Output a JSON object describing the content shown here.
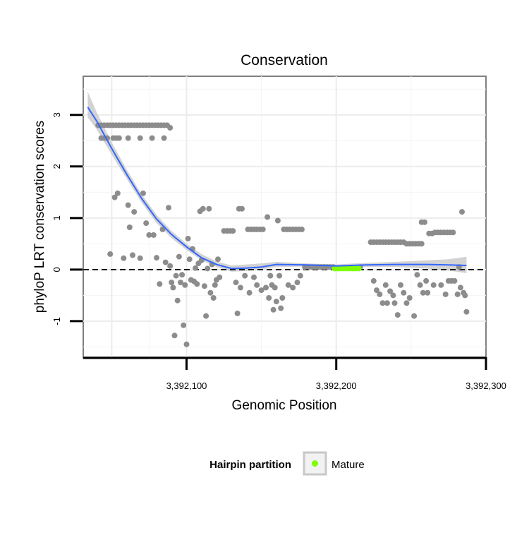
{
  "chart_data": {
    "type": "scatter",
    "title": "Conservation",
    "xlabel": "Genomic Position",
    "ylabel": "phyloP LRT conservation scores",
    "xlim": [
      3392031,
      3392300
    ],
    "ylim": [
      -1.7,
      3.75
    ],
    "x_ticks": [
      3392100,
      3392200,
      3392300
    ],
    "x_tick_labels": [
      "3,392,100",
      "3,392,200",
      "3,392,300"
    ],
    "y_ticks": [
      -1,
      0,
      1,
      2,
      3
    ],
    "y_tick_labels": [
      "-1",
      "0",
      "1",
      "2",
      "3"
    ],
    "reference_line": {
      "y": 0,
      "style": "dashed"
    },
    "grid": true,
    "legend": {
      "title": "Hairpin partition",
      "position": "bottom",
      "items": [
        {
          "label": "Mature",
          "color": "#7fff00"
        }
      ]
    },
    "colors": {
      "points": "#8c8c8c",
      "mature": "#7fff00",
      "smooth_line": "#3366ff",
      "ribbon": "#c8c8c8"
    },
    "series": [
      {
        "type": "scatter",
        "points": [
          [
            3392041,
            2.8
          ],
          [
            3392043,
            2.8
          ],
          [
            3392045,
            2.8
          ],
          [
            3392047,
            2.8
          ],
          [
            3392049,
            2.8
          ],
          [
            3392051,
            2.8
          ],
          [
            3392053,
            2.8
          ],
          [
            3392055,
            2.8
          ],
          [
            3392057,
            2.8
          ],
          [
            3392059,
            2.8
          ],
          [
            3392061,
            2.8
          ],
          [
            3392063,
            2.8
          ],
          [
            3392065,
            2.8
          ],
          [
            3392067,
            2.8
          ],
          [
            3392069,
            2.8
          ],
          [
            3392071,
            2.8
          ],
          [
            3392073,
            2.8
          ],
          [
            3392075,
            2.8
          ],
          [
            3392077,
            2.8
          ],
          [
            3392079,
            2.8
          ],
          [
            3392081,
            2.8
          ],
          [
            3392083,
            2.8
          ],
          [
            3392085,
            2.8
          ],
          [
            3392087,
            2.8
          ],
          [
            3392043,
            2.55
          ],
          [
            3392045,
            2.55
          ],
          [
            3392047,
            2.55
          ],
          [
            3392051,
            2.55
          ],
          [
            3392053,
            2.55
          ],
          [
            3392055,
            2.55
          ],
          [
            3392061,
            2.55
          ],
          [
            3392069,
            2.55
          ],
          [
            3392077,
            2.55
          ],
          [
            3392085,
            2.55
          ],
          [
            3392089,
            2.75
          ],
          [
            3392049,
            0.3
          ],
          [
            3392052,
            1.4
          ],
          [
            3392054,
            1.48
          ],
          [
            3392058,
            0.22
          ],
          [
            3392061,
            1.25
          ],
          [
            3392062,
            0.82
          ],
          [
            3392064,
            0.28
          ],
          [
            3392065,
            1.12
          ],
          [
            3392069,
            0.22
          ],
          [
            3392071,
            1.48
          ],
          [
            3392073,
            0.9
          ],
          [
            3392075,
            0.67
          ],
          [
            3392078,
            0.67
          ],
          [
            3392080,
            0.23
          ],
          [
            3392082,
            -0.28
          ],
          [
            3392084,
            0.78
          ],
          [
            3392086,
            0.14
          ],
          [
            3392088,
            1.2
          ],
          [
            3392089,
            0.07
          ],
          [
            3392090,
            -0.25
          ],
          [
            3392091,
            -0.35
          ],
          [
            3392092,
            -1.28
          ],
          [
            3392093,
            -0.12
          ],
          [
            3392094,
            -0.6
          ],
          [
            3392095,
            0.25
          ],
          [
            3392096,
            -0.25
          ],
          [
            3392097,
            -0.1
          ],
          [
            3392098,
            -1.08
          ],
          [
            3392099,
            -0.3
          ],
          [
            3392100,
            -1.45
          ],
          [
            3392101,
            0.6
          ],
          [
            3392102,
            0.2
          ],
          [
            3392103,
            -0.2
          ],
          [
            3392104,
            0.4
          ],
          [
            3392105,
            -0.23
          ],
          [
            3392106,
            0.03
          ],
          [
            3392107,
            -0.28
          ],
          [
            3392108,
            0.12
          ],
          [
            3392109,
            1.13
          ],
          [
            3392110,
            0.18
          ],
          [
            3392111,
            1.18
          ],
          [
            3392112,
            -0.32
          ],
          [
            3392113,
            -0.9
          ],
          [
            3392114,
            0.02
          ],
          [
            3392115,
            1.18
          ],
          [
            3392116,
            -0.45
          ],
          [
            3392117,
            0.1
          ],
          [
            3392118,
            -0.55
          ],
          [
            3392119,
            -0.3
          ],
          [
            3392120,
            -0.2
          ],
          [
            3392121,
            0.2
          ],
          [
            3392122,
            -0.15
          ],
          [
            3392125,
            0.75
          ],
          [
            3392127,
            0.75
          ],
          [
            3392129,
            0.75
          ],
          [
            3392131,
            0.75
          ],
          [
            3392133,
            -0.25
          ],
          [
            3392135,
            1.18
          ],
          [
            3392137,
            1.18
          ],
          [
            3392134,
            -0.85
          ],
          [
            3392136,
            -0.35
          ],
          [
            3392139,
            -0.12
          ],
          [
            3392141,
            0.78
          ],
          [
            3392143,
            0.78
          ],
          [
            3392145,
            0.78
          ],
          [
            3392147,
            0.78
          ],
          [
            3392149,
            0.78
          ],
          [
            3392151,
            0.78
          ],
          [
            3392142,
            -0.45
          ],
          [
            3392145,
            -0.15
          ],
          [
            3392147,
            -0.3
          ],
          [
            3392150,
            -0.4
          ],
          [
            3392153,
            -0.35
          ],
          [
            3392154,
            1.02
          ],
          [
            3392155,
            -0.55
          ],
          [
            3392156,
            -0.12
          ],
          [
            3392157,
            -0.3
          ],
          [
            3392158,
            -0.78
          ],
          [
            3392159,
            -0.35
          ],
          [
            3392160,
            -0.62
          ],
          [
            3392161,
            0.95
          ],
          [
            3392162,
            -0.12
          ],
          [
            3392163,
            -0.75
          ],
          [
            3392164,
            -0.55
          ],
          [
            3392165,
            0.78
          ],
          [
            3392167,
            0.78
          ],
          [
            3392169,
            0.78
          ],
          [
            3392171,
            0.78
          ],
          [
            3392173,
            0.78
          ],
          [
            3392175,
            0.78
          ],
          [
            3392177,
            0.78
          ],
          [
            3392168,
            -0.3
          ],
          [
            3392171,
            -0.35
          ],
          [
            3392174,
            -0.25
          ],
          [
            3392176,
            -0.12
          ],
          [
            3392179,
            0.05
          ],
          [
            3392182,
            0.05
          ],
          [
            3392184,
            0.05
          ],
          [
            3392186,
            0.05
          ],
          [
            3392188,
            0.05
          ],
          [
            3392190,
            0.05
          ],
          [
            3392192,
            0.05
          ],
          [
            3392194,
            0.05
          ],
          [
            3392196,
            0.05
          ],
          [
            3392198,
            0.05
          ],
          [
            3392216,
            0.05
          ],
          [
            3392223,
            0.53
          ],
          [
            3392225,
            0.53
          ],
          [
            3392227,
            0.53
          ],
          [
            3392229,
            0.53
          ],
          [
            3392231,
            0.53
          ],
          [
            3392233,
            0.53
          ],
          [
            3392235,
            0.53
          ],
          [
            3392237,
            0.53
          ],
          [
            3392239,
            0.53
          ],
          [
            3392241,
            0.53
          ],
          [
            3392243,
            0.53
          ],
          [
            3392245,
            0.53
          ],
          [
            3392247,
            0.5
          ],
          [
            3392249,
            0.5
          ],
          [
            3392251,
            0.5
          ],
          [
            3392253,
            0.5
          ],
          [
            3392255,
            0.5
          ],
          [
            3392257,
            0.5
          ],
          [
            3392225,
            -0.22
          ],
          [
            3392227,
            -0.4
          ],
          [
            3392229,
            -0.48
          ],
          [
            3392231,
            -0.65
          ],
          [
            3392233,
            -0.3
          ],
          [
            3392234,
            -0.65
          ],
          [
            3392236,
            -0.42
          ],
          [
            3392238,
            -0.5
          ],
          [
            3392239,
            -0.65
          ],
          [
            3392241,
            -0.88
          ],
          [
            3392243,
            -0.3
          ],
          [
            3392245,
            -0.45
          ],
          [
            3392247,
            -0.65
          ],
          [
            3392249,
            -0.55
          ],
          [
            3392252,
            -0.9
          ],
          [
            3392254,
            -0.1
          ],
          [
            3392256,
            -0.3
          ],
          [
            3392257,
            0.92
          ],
          [
            3392258,
            -0.45
          ],
          [
            3392259,
            0.92
          ],
          [
            3392260,
            -0.22
          ],
          [
            3392261,
            -0.45
          ],
          [
            3392262,
            0.7
          ],
          [
            3392264,
            0.7
          ],
          [
            3392265,
            -0.3
          ],
          [
            3392266,
            0.72
          ],
          [
            3392268,
            0.72
          ],
          [
            3392270,
            0.72
          ],
          [
            3392272,
            0.72
          ],
          [
            3392274,
            0.72
          ],
          [
            3392276,
            0.72
          ],
          [
            3392278,
            0.72
          ],
          [
            3392270,
            -0.3
          ],
          [
            3392273,
            -0.48
          ],
          [
            3392275,
            -0.22
          ],
          [
            3392277,
            -0.22
          ],
          [
            3392279,
            -0.22
          ],
          [
            3392281,
            -0.48
          ],
          [
            3392282,
            0.05
          ],
          [
            3392283,
            -0.35
          ],
          [
            3392284,
            1.12
          ],
          [
            3392285,
            -0.45
          ],
          [
            3392286,
            -0.5
          ],
          [
            3392287,
            -0.82
          ]
        ]
      },
      {
        "name": "Mature",
        "type": "scatter",
        "points": [
          [
            3392199,
            0.02
          ],
          [
            3392201,
            0.02
          ],
          [
            3392203,
            0.02
          ],
          [
            3392205,
            0.02
          ],
          [
            3392207,
            0.02
          ],
          [
            3392209,
            0.02
          ],
          [
            3392211,
            0.02
          ],
          [
            3392213,
            0.02
          ],
          [
            3392215,
            0.02
          ]
        ]
      },
      {
        "type": "smooth",
        "x": [
          3392034,
          3392040,
          3392050,
          3392060,
          3392070,
          3392080,
          3392090,
          3392100,
          3392110,
          3392120,
          3392130,
          3392140,
          3392150,
          3392160,
          3392180,
          3392200,
          3392220,
          3392240,
          3392260,
          3392275,
          3392287
        ],
        "y": [
          3.15,
          2.88,
          2.35,
          1.85,
          1.38,
          0.98,
          0.68,
          0.44,
          0.23,
          0.1,
          0.02,
          0.03,
          0.05,
          0.1,
          0.09,
          0.07,
          0.09,
          0.1,
          0.1,
          0.09,
          0.08
        ],
        "lower": [
          2.95,
          2.72,
          2.23,
          1.76,
          1.3,
          0.9,
          0.61,
          0.38,
          0.18,
          0.05,
          -0.04,
          -0.03,
          0.0,
          0.05,
          0.06,
          0.04,
          0.05,
          0.05,
          0.02,
          -0.02,
          -0.07
        ],
        "upper": [
          3.45,
          3.05,
          2.47,
          1.94,
          1.46,
          1.06,
          0.75,
          0.5,
          0.3,
          0.16,
          0.08,
          0.1,
          0.12,
          0.15,
          0.12,
          0.1,
          0.13,
          0.15,
          0.18,
          0.2,
          0.25
        ]
      }
    ]
  }
}
